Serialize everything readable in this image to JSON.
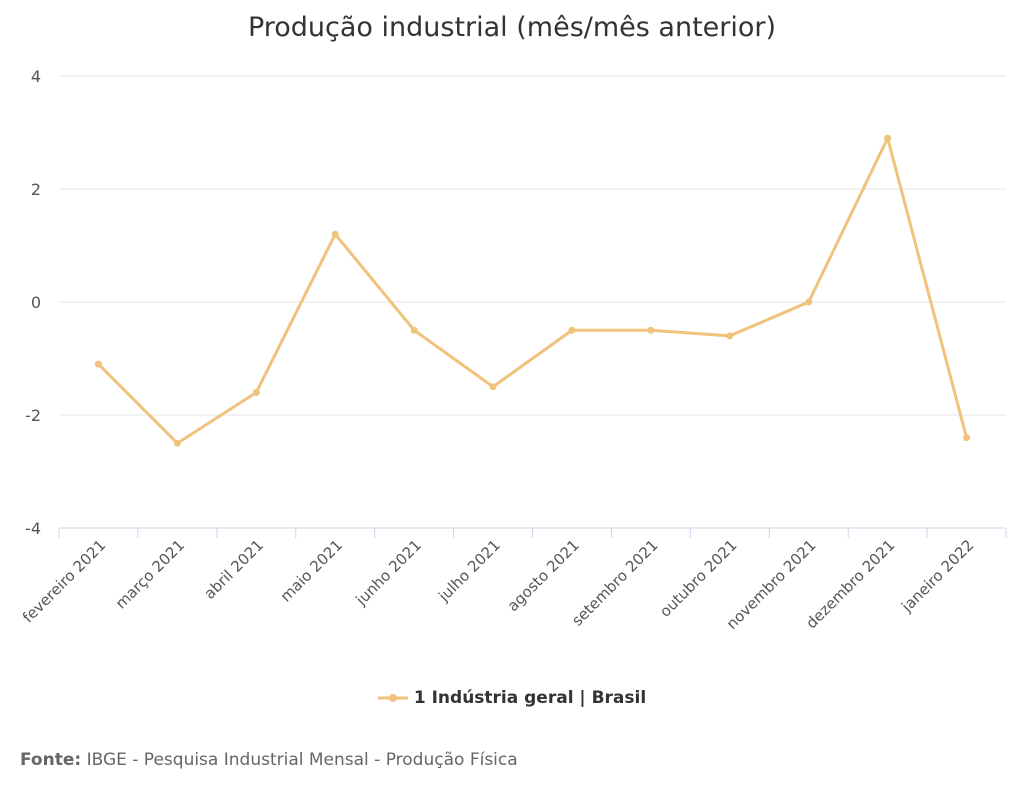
{
  "chart_data": {
    "type": "line",
    "title": "Produção industrial (mês/mês anterior)",
    "xlabel": "",
    "ylabel": "",
    "ylim": [
      -4,
      4
    ],
    "yticks": [
      -4,
      -2,
      0,
      2,
      4
    ],
    "ytick_labels": [
      "-4",
      "-2",
      "0",
      "2",
      "4"
    ],
    "grid": true,
    "legend_position": "bottom-center",
    "categories": [
      "fevereiro 2021",
      "março 2021",
      "abril 2021",
      "maio 2021",
      "junho 2021",
      "julho 2021",
      "agosto 2021",
      "setembro 2021",
      "outubro 2021",
      "novembro 2021",
      "dezembro 2021",
      "janeiro 2022"
    ],
    "series": [
      {
        "name": "1 Indústria geral | Brasil",
        "color": "#f0c27b",
        "values": [
          -1.1,
          -2.5,
          -1.6,
          1.2,
          -0.5,
          -1.5,
          -0.5,
          -0.5,
          -0.6,
          0.0,
          2.9,
          -2.4
        ]
      }
    ]
  },
  "footer": {
    "label": "Fonte:",
    "text": "IBGE - Pesquisa Industrial Mensal - Produção Física"
  }
}
